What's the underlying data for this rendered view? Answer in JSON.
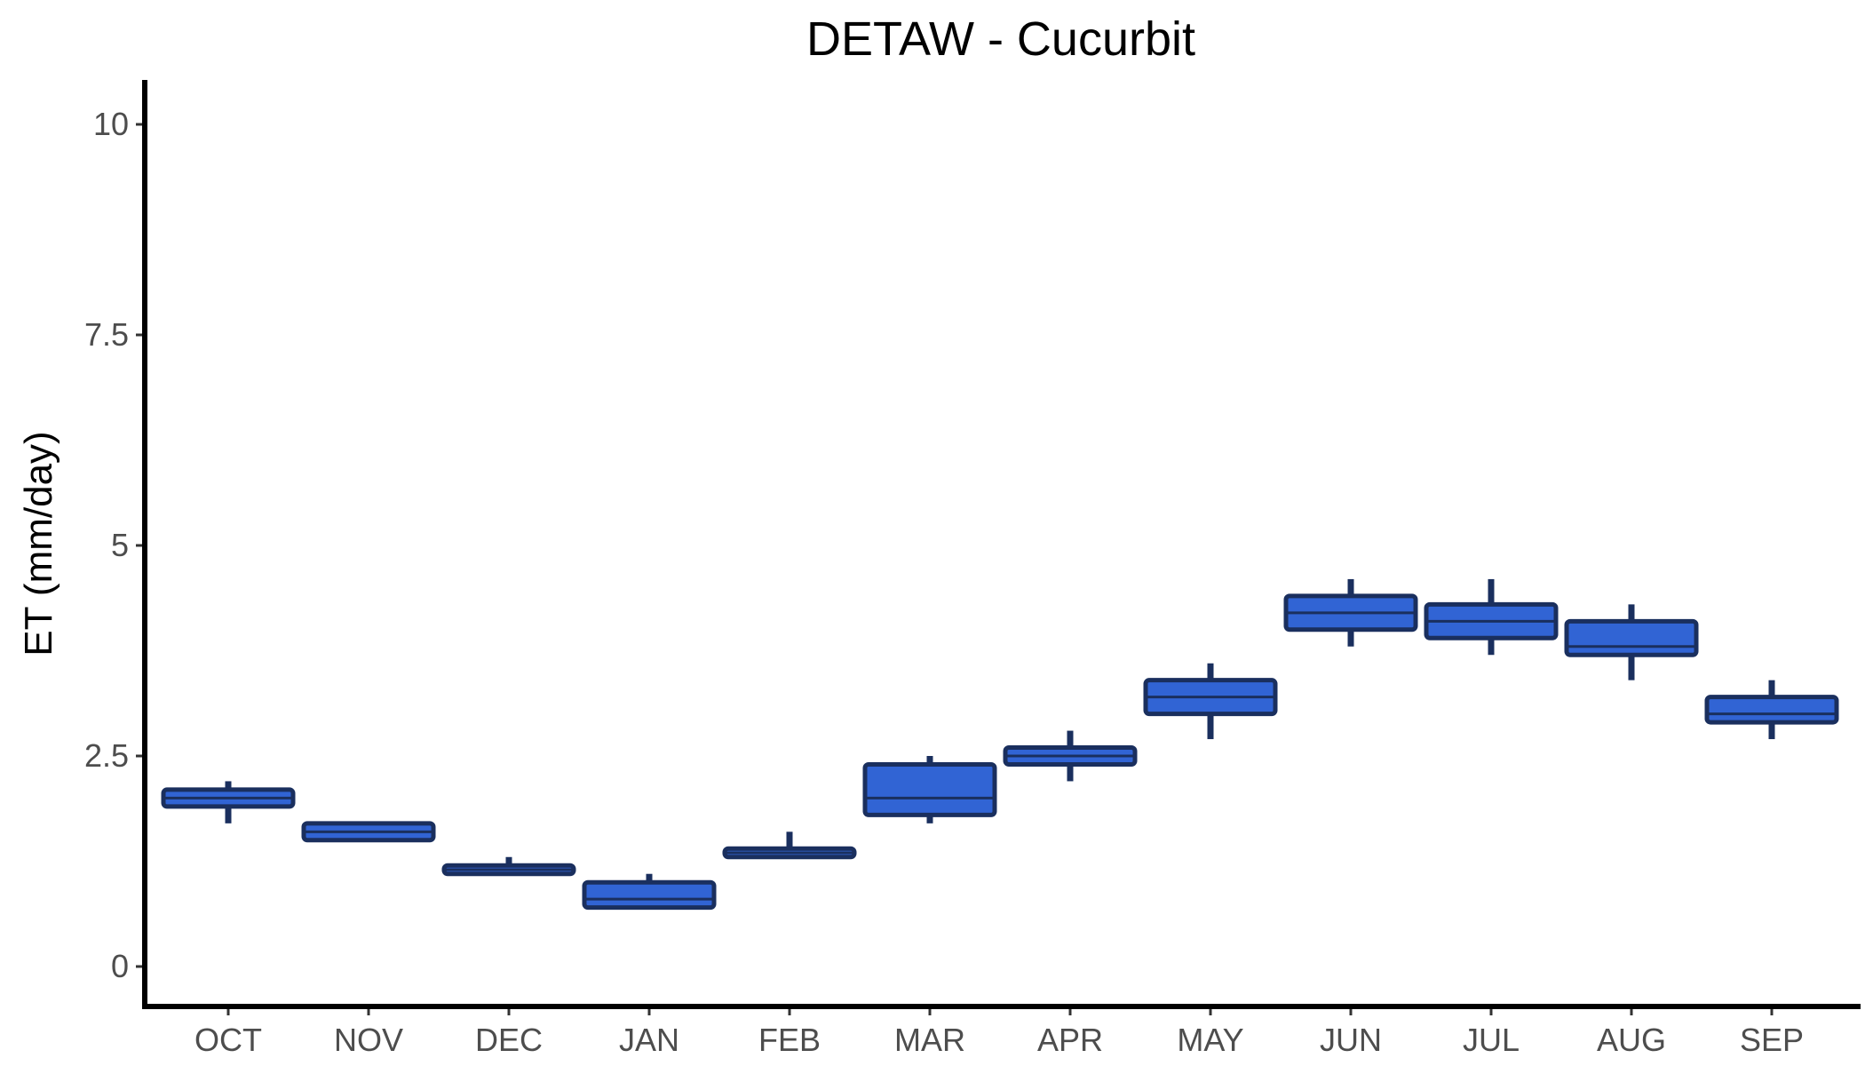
{
  "chart_data": {
    "type": "boxplot",
    "title": "DETAW - Cucurbit",
    "xlabel": "",
    "ylabel": "ET (mm/day)",
    "ylim": [
      -0.5,
      10.5
    ],
    "yticks": [
      0,
      2.5,
      5,
      7.5,
      10
    ],
    "ytick_labels": [
      "0",
      "2.5",
      "5",
      "7.5",
      "10"
    ],
    "grid": false,
    "categories": [
      "OCT",
      "NOV",
      "DEC",
      "JAN",
      "FEB",
      "MAR",
      "APR",
      "MAY",
      "JUN",
      "JUL",
      "AUG",
      "SEP"
    ],
    "box_color": "#3164d4",
    "outline_color": "#1a2f5e",
    "boxes": [
      {
        "min": 1.7,
        "q1": 1.9,
        "median": 2.0,
        "q3": 2.1,
        "max": 2.2
      },
      {
        "min": 1.5,
        "q1": 1.5,
        "median": 1.6,
        "q3": 1.7,
        "max": 1.7
      },
      {
        "min": 1.1,
        "q1": 1.1,
        "median": 1.15,
        "q3": 1.2,
        "max": 1.3
      },
      {
        "min": 0.7,
        "q1": 0.7,
        "median": 0.8,
        "q3": 1.0,
        "max": 1.1
      },
      {
        "min": 1.3,
        "q1": 1.3,
        "median": 1.35,
        "q3": 1.4,
        "max": 1.6
      },
      {
        "min": 1.7,
        "q1": 1.8,
        "median": 2.0,
        "q3": 2.4,
        "max": 2.5
      },
      {
        "min": 2.2,
        "q1": 2.4,
        "median": 2.5,
        "q3": 2.6,
        "max": 2.8
      },
      {
        "min": 2.7,
        "q1": 3.0,
        "median": 3.2,
        "q3": 3.4,
        "max": 3.6
      },
      {
        "min": 3.8,
        "q1": 4.0,
        "median": 4.2,
        "q3": 4.4,
        "max": 4.6
      },
      {
        "min": 3.7,
        "q1": 3.9,
        "median": 4.1,
        "q3": 4.3,
        "max": 4.6
      },
      {
        "min": 3.4,
        "q1": 3.7,
        "median": 3.8,
        "q3": 4.1,
        "max": 4.3
      },
      {
        "min": 2.7,
        "q1": 2.9,
        "median": 3.0,
        "q3": 3.2,
        "max": 3.4
      }
    ]
  }
}
